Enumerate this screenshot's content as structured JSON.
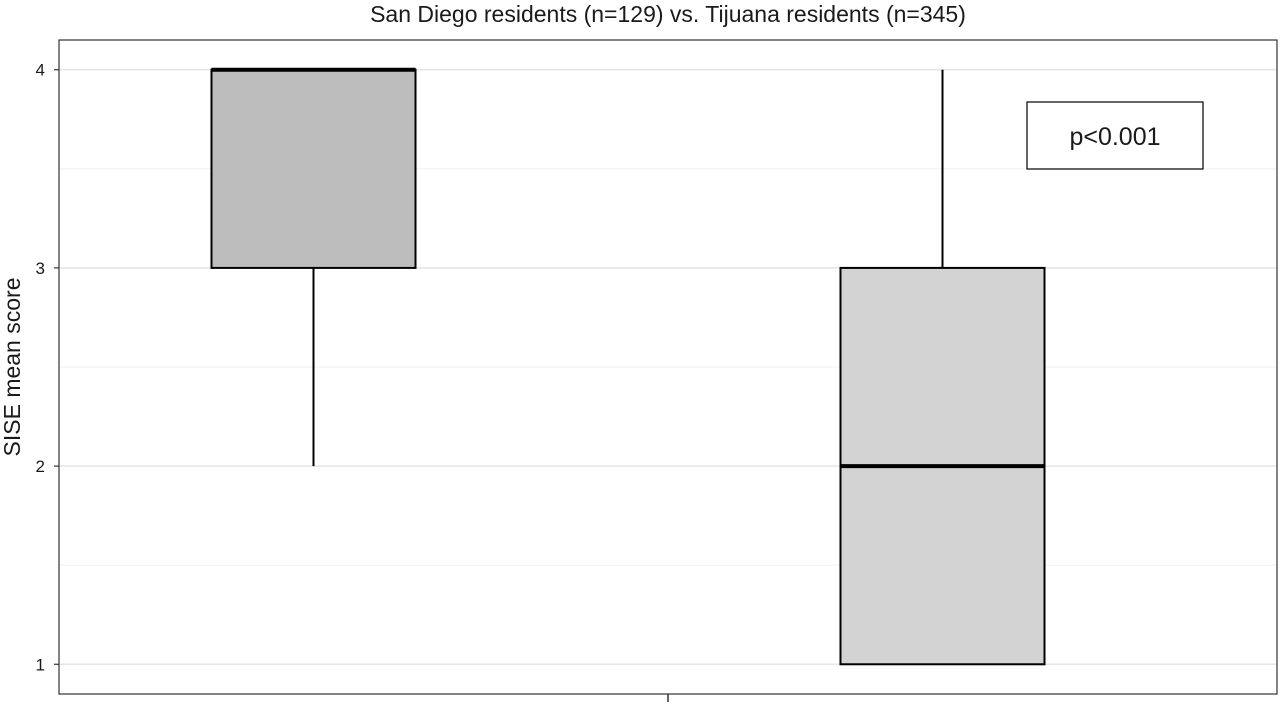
{
  "chart_data": {
    "type": "box",
    "title": "San Diego residents (n=129)  vs.  Tijuana residents (n=345)",
    "xlabel": "",
    "ylabel": "SISE mean score",
    "ylim": [
      0.85,
      4.15
    ],
    "y_ticks": [
      1,
      2,
      3,
      4
    ],
    "grid": true,
    "annotation": "p<0.001",
    "colors": {
      "box1": "#bdbdbd",
      "box2": "#d3d3d3",
      "stroke": "#000000",
      "grid": "#e6e6e6"
    },
    "series": [
      {
        "whisker_low": 2,
        "q1": 3,
        "median": 4,
        "q3": 4,
        "whisker_high": 4
      },
      {
        "whisker_low": 1,
        "q1": 1,
        "median": 2,
        "q3": 3,
        "whisker_high": 4
      }
    ]
  }
}
